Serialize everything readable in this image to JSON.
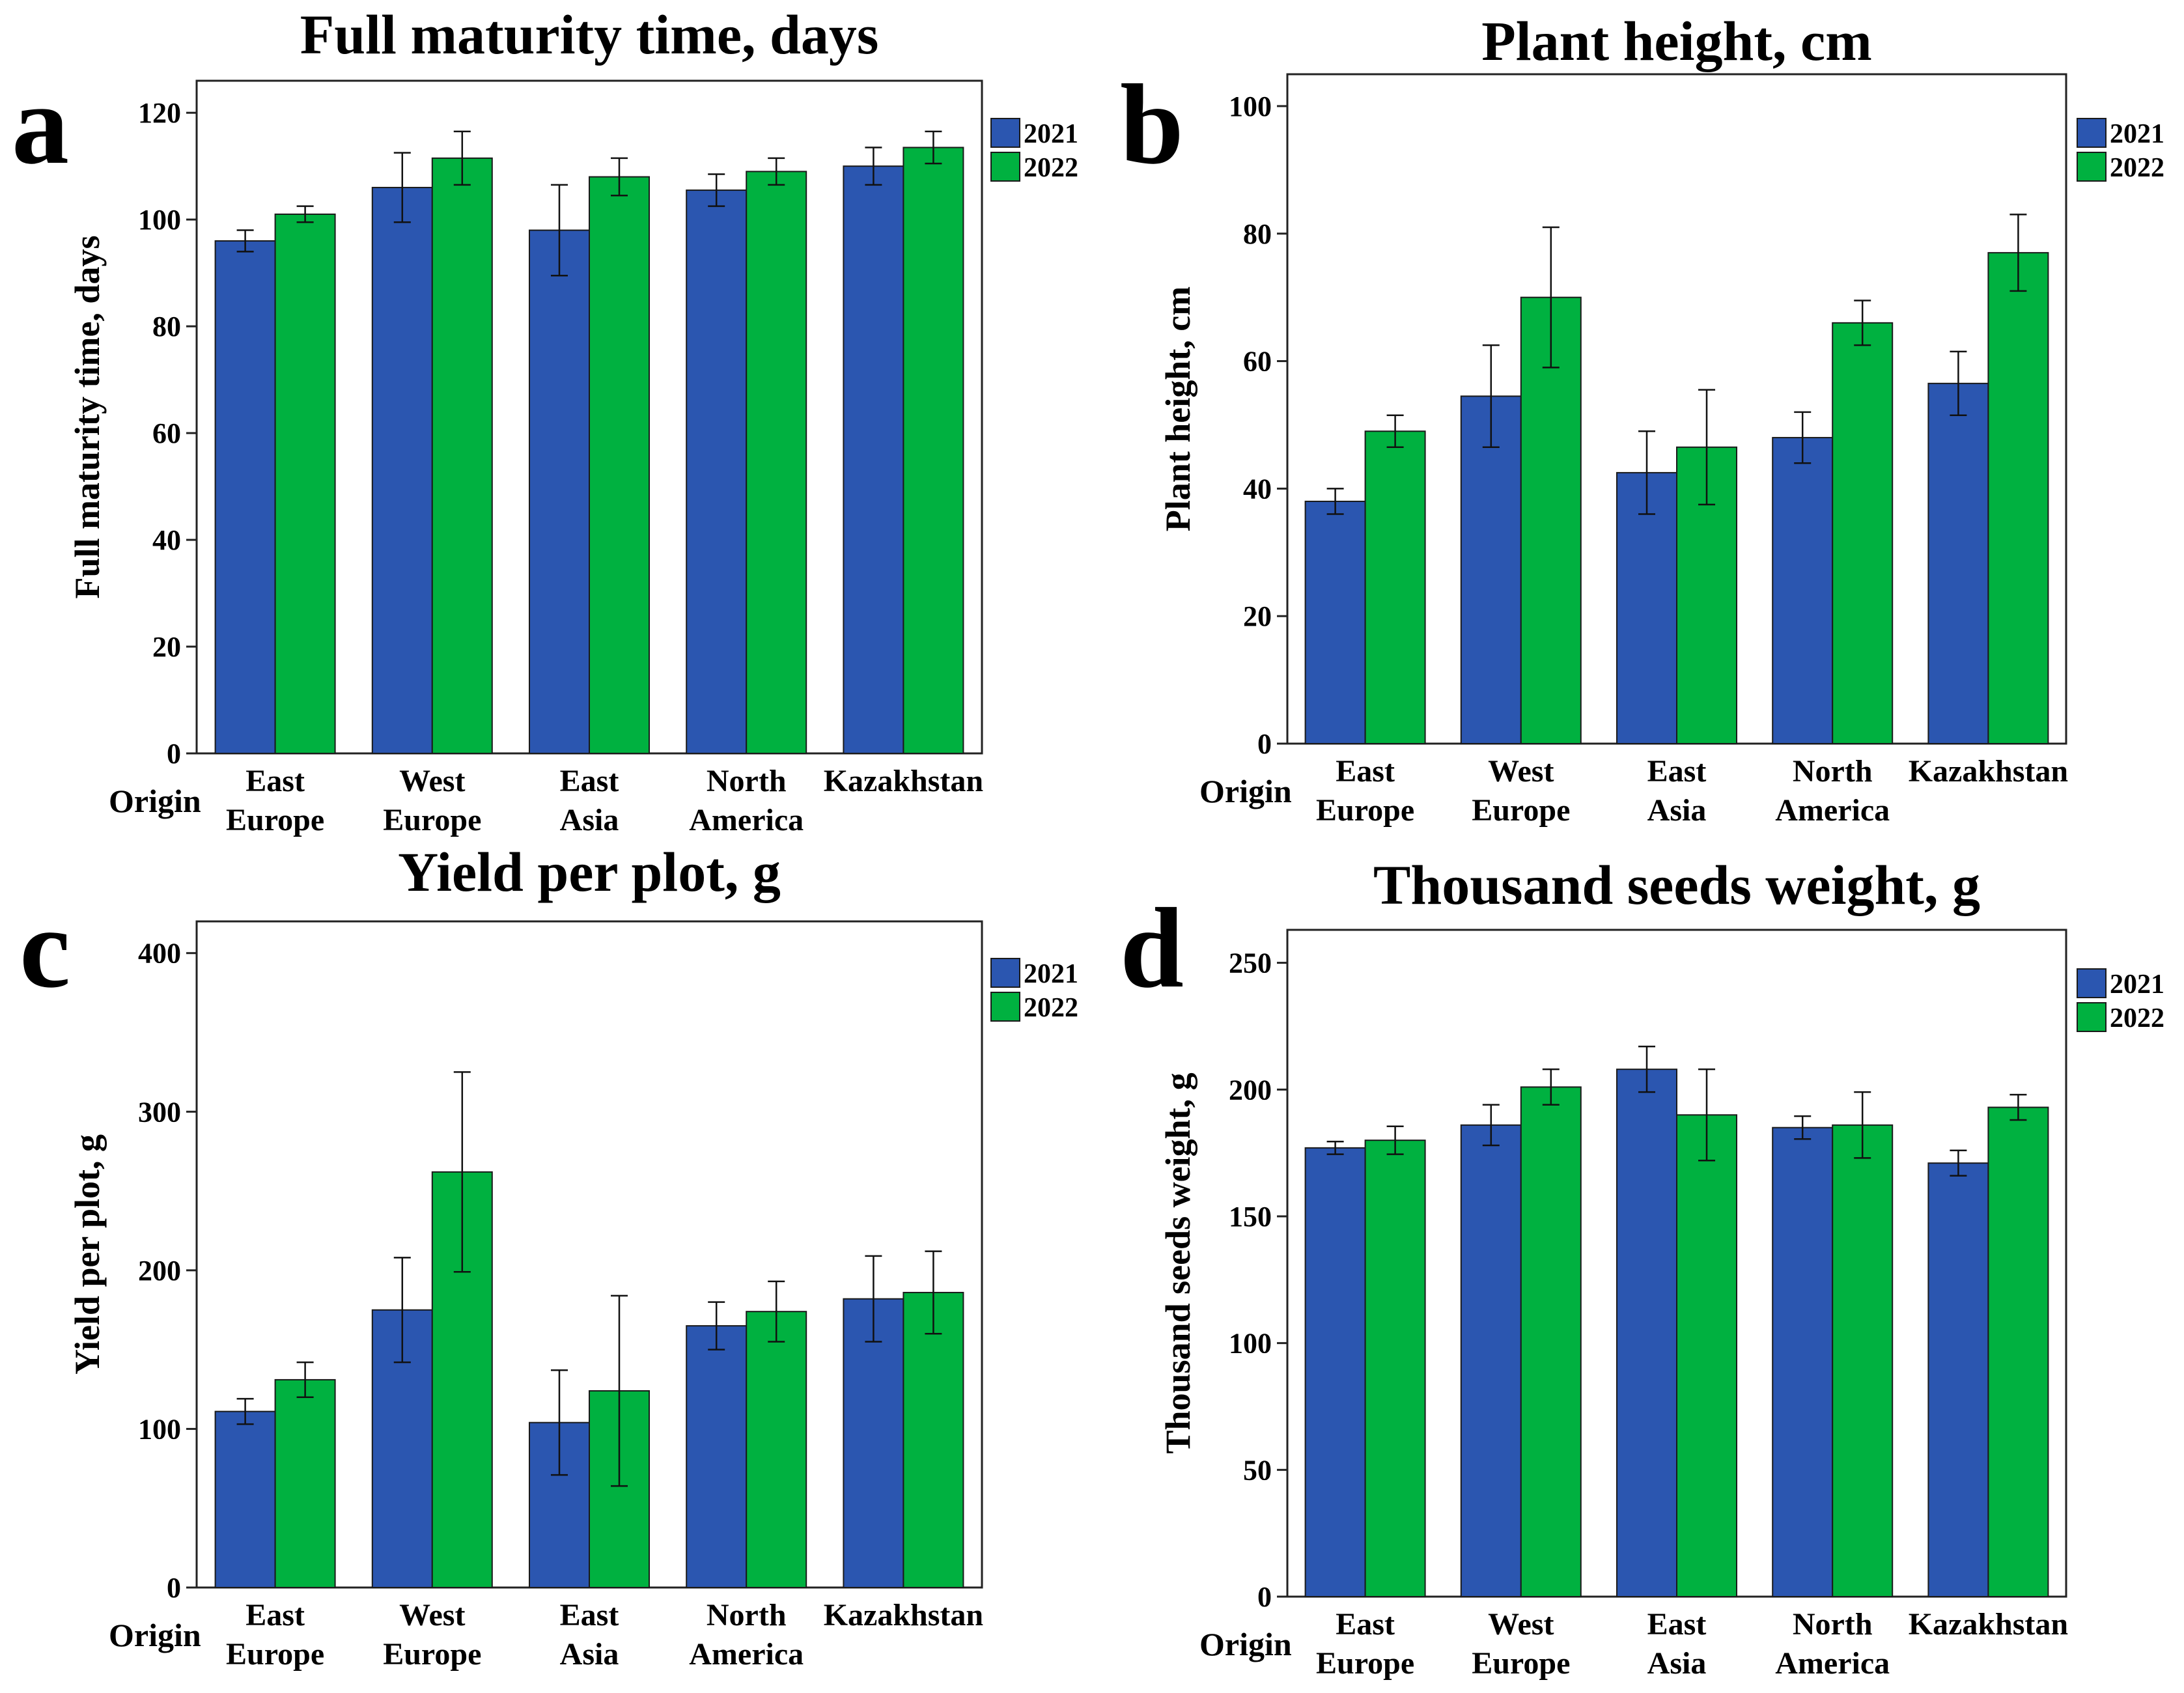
{
  "colors": {
    "y2021": "#2b56b0",
    "y2022": "#00b140"
  },
  "chart_data": [
    {
      "panel": "a",
      "type": "bar",
      "title": "Full maturity time, days",
      "ylabel": "Full maturity time, days",
      "xlabel": "Origin",
      "categories": [
        [
          "East",
          "Europe"
        ],
        [
          "West",
          "Europe"
        ],
        [
          "East",
          "Asia"
        ],
        [
          "North",
          "America"
        ],
        [
          "Kazakhstan"
        ]
      ],
      "ylim": [
        0,
        126
      ],
      "yticks": [
        0,
        20,
        40,
        60,
        80,
        100,
        120
      ],
      "legend": [
        "2021",
        "2022"
      ],
      "legend_position": "top-right-outside",
      "series": [
        {
          "name": "2021",
          "values": [
            96,
            106,
            98,
            105.5,
            110
          ],
          "err": [
            2,
            6.5,
            8.5,
            3,
            3.5
          ]
        },
        {
          "name": "2022",
          "values": [
            101,
            111.5,
            108,
            109,
            113.5
          ],
          "err": [
            1.5,
            5,
            3.5,
            2.5,
            3
          ]
        }
      ]
    },
    {
      "panel": "b",
      "type": "bar",
      "title": "Plant height, cm",
      "ylabel": "Plant height, cm",
      "xlabel": "Origin",
      "categories": [
        [
          "East",
          "Europe"
        ],
        [
          "West",
          "Europe"
        ],
        [
          "East",
          "Asia"
        ],
        [
          "North",
          "America"
        ],
        [
          "Kazakhstan"
        ]
      ],
      "ylim": [
        0,
        105
      ],
      "yticks": [
        0,
        20,
        40,
        60,
        80,
        100
      ],
      "legend": [
        "2021",
        "2022"
      ],
      "legend_position": "top-right-outside",
      "series": [
        {
          "name": "2021",
          "values": [
            38,
            54.5,
            42.5,
            48,
            56.5
          ],
          "err": [
            2,
            8,
            6.5,
            4,
            5
          ]
        },
        {
          "name": "2022",
          "values": [
            49,
            70,
            46.5,
            66,
            77
          ],
          "err": [
            2.5,
            11,
            9,
            3.5,
            6
          ]
        }
      ]
    },
    {
      "panel": "c",
      "type": "bar",
      "title": "Yield per plot, g",
      "ylabel": "Yield per plot, g",
      "xlabel": "Origin",
      "categories": [
        [
          "East",
          "Europe"
        ],
        [
          "West",
          "Europe"
        ],
        [
          "East",
          "Asia"
        ],
        [
          "North",
          "America"
        ],
        [
          "Kazakhstan"
        ]
      ],
      "ylim": [
        0,
        420
      ],
      "yticks": [
        0,
        100,
        200,
        300,
        400
      ],
      "legend": [
        "2021",
        "2022"
      ],
      "legend_position": "top-right-outside",
      "series": [
        {
          "name": "2021",
          "values": [
            111,
            175,
            104,
            165,
            182
          ],
          "err": [
            8,
            33,
            33,
            15,
            27
          ]
        },
        {
          "name": "2022",
          "values": [
            131,
            262,
            124,
            174,
            186
          ],
          "err": [
            11,
            63,
            60,
            19,
            26
          ]
        }
      ]
    },
    {
      "panel": "d",
      "type": "bar",
      "title": "Thousand seeds weight, g",
      "ylabel": "Thousand seeds weight, g",
      "xlabel": "Origin",
      "categories": [
        [
          "East",
          "Europe"
        ],
        [
          "West",
          "Europe"
        ],
        [
          "East",
          "Asia"
        ],
        [
          "North",
          "America"
        ],
        [
          "Kazakhstan"
        ]
      ],
      "ylim": [
        0,
        263
      ],
      "yticks": [
        0,
        50,
        100,
        150,
        200,
        250
      ],
      "legend": [
        "2021",
        "2022"
      ],
      "legend_position": "top-right-outside",
      "series": [
        {
          "name": "2021",
          "values": [
            177,
            186,
            208,
            185,
            171
          ],
          "err": [
            2.5,
            8,
            9,
            4.5,
            5
          ]
        },
        {
          "name": "2022",
          "values": [
            180,
            201,
            190,
            186,
            193
          ],
          "err": [
            5.5,
            7,
            18,
            13,
            5
          ]
        }
      ]
    }
  ]
}
